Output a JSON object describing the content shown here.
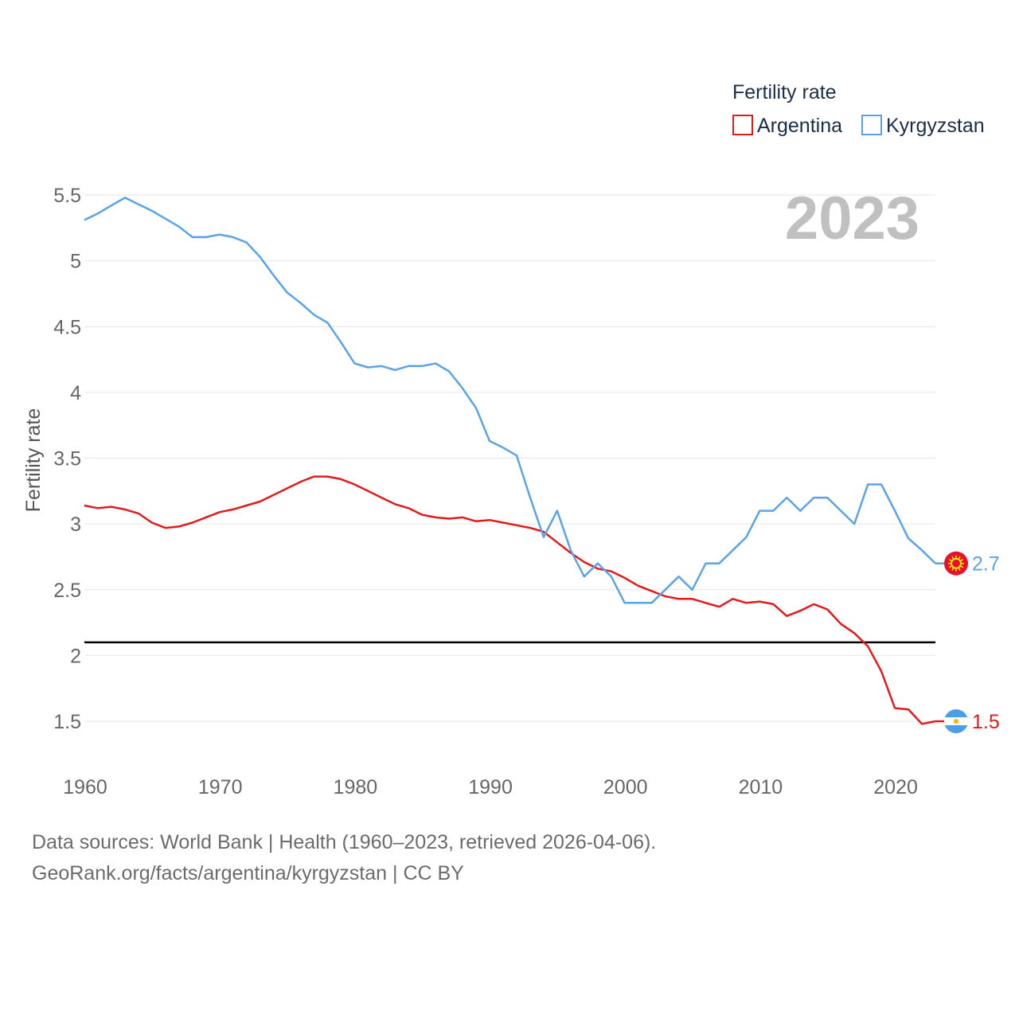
{
  "chart_data": {
    "type": "line",
    "legend_title": "Fertility rate",
    "ylabel": "Fertility rate",
    "xlabel": "",
    "year_label": "2023",
    "xlim": [
      1960,
      2023
    ],
    "ylim": [
      1.25,
      5.55
    ],
    "x_ticks": [
      1960,
      1970,
      1980,
      1990,
      2000,
      2010,
      2020
    ],
    "y_ticks": [
      1.5,
      2,
      2.5,
      3,
      3.5,
      4,
      4.5,
      5,
      5.5
    ],
    "y_tick_labels": [
      "1.5",
      "2",
      "2.5",
      "3",
      "3.5",
      "4",
      "4.5",
      "5",
      "5.5"
    ],
    "reference_line": {
      "value": 2.1,
      "color": "#000000"
    },
    "x": [
      1960,
      1961,
      1962,
      1963,
      1964,
      1965,
      1966,
      1967,
      1968,
      1969,
      1970,
      1971,
      1972,
      1973,
      1974,
      1975,
      1976,
      1977,
      1978,
      1979,
      1980,
      1981,
      1982,
      1983,
      1984,
      1985,
      1986,
      1987,
      1988,
      1989,
      1990,
      1991,
      1992,
      1993,
      1994,
      1995,
      1996,
      1997,
      1998,
      1999,
      2000,
      2001,
      2002,
      2003,
      2004,
      2005,
      2006,
      2007,
      2008,
      2009,
      2010,
      2011,
      2012,
      2013,
      2014,
      2015,
      2016,
      2017,
      2018,
      2019,
      2020,
      2021,
      2022,
      2023
    ],
    "series": [
      {
        "name": "Argentina",
        "color": "#e31a1c",
        "end_label": "1.5",
        "flag": "argentina-flag",
        "values": [
          3.14,
          3.12,
          3.13,
          3.11,
          3.08,
          3.01,
          2.97,
          2.98,
          3.01,
          3.05,
          3.09,
          3.11,
          3.14,
          3.17,
          3.22,
          3.27,
          3.32,
          3.36,
          3.36,
          3.34,
          3.3,
          3.25,
          3.2,
          3.15,
          3.12,
          3.07,
          3.05,
          3.04,
          3.05,
          3.02,
          3.03,
          3.01,
          2.99,
          2.97,
          2.94,
          2.86,
          2.78,
          2.71,
          2.66,
          2.64,
          2.59,
          2.53,
          2.49,
          2.45,
          2.43,
          2.43,
          2.4,
          2.37,
          2.43,
          2.4,
          2.41,
          2.39,
          2.3,
          2.34,
          2.39,
          2.35,
          2.24,
          2.17,
          2.07,
          1.88,
          1.6,
          1.59,
          1.48,
          1.5
        ]
      },
      {
        "name": "Kyrgyzstan",
        "color": "#5ba3e6",
        "end_label": "2.7",
        "flag": "kyrgyzstan-flag",
        "values": [
          5.31,
          5.36,
          5.42,
          5.48,
          5.43,
          5.38,
          5.32,
          5.26,
          5.18,
          5.18,
          5.2,
          5.18,
          5.14,
          5.03,
          4.89,
          4.76,
          4.68,
          4.59,
          4.53,
          4.38,
          4.22,
          4.19,
          4.2,
          4.17,
          4.2,
          4.2,
          4.22,
          4.16,
          4.03,
          3.88,
          3.63,
          3.58,
          3.52,
          3.2,
          2.9,
          3.1,
          2.8,
          2.6,
          2.7,
          2.6,
          2.4,
          2.4,
          2.4,
          2.5,
          2.6,
          2.5,
          2.7,
          2.7,
          2.8,
          2.9,
          3.1,
          3.1,
          3.2,
          3.1,
          3.2,
          3.2,
          3.1,
          3.0,
          3.3,
          3.3,
          3.1,
          2.89,
          2.8,
          2.7
        ]
      }
    ]
  },
  "footer": {
    "line1": "Data sources: World Bank | Health (1960–2023, retrieved 2026-04-06).",
    "line2": "GeoRank.org/facts/argentina/kyrgyzstan | CC BY"
  }
}
